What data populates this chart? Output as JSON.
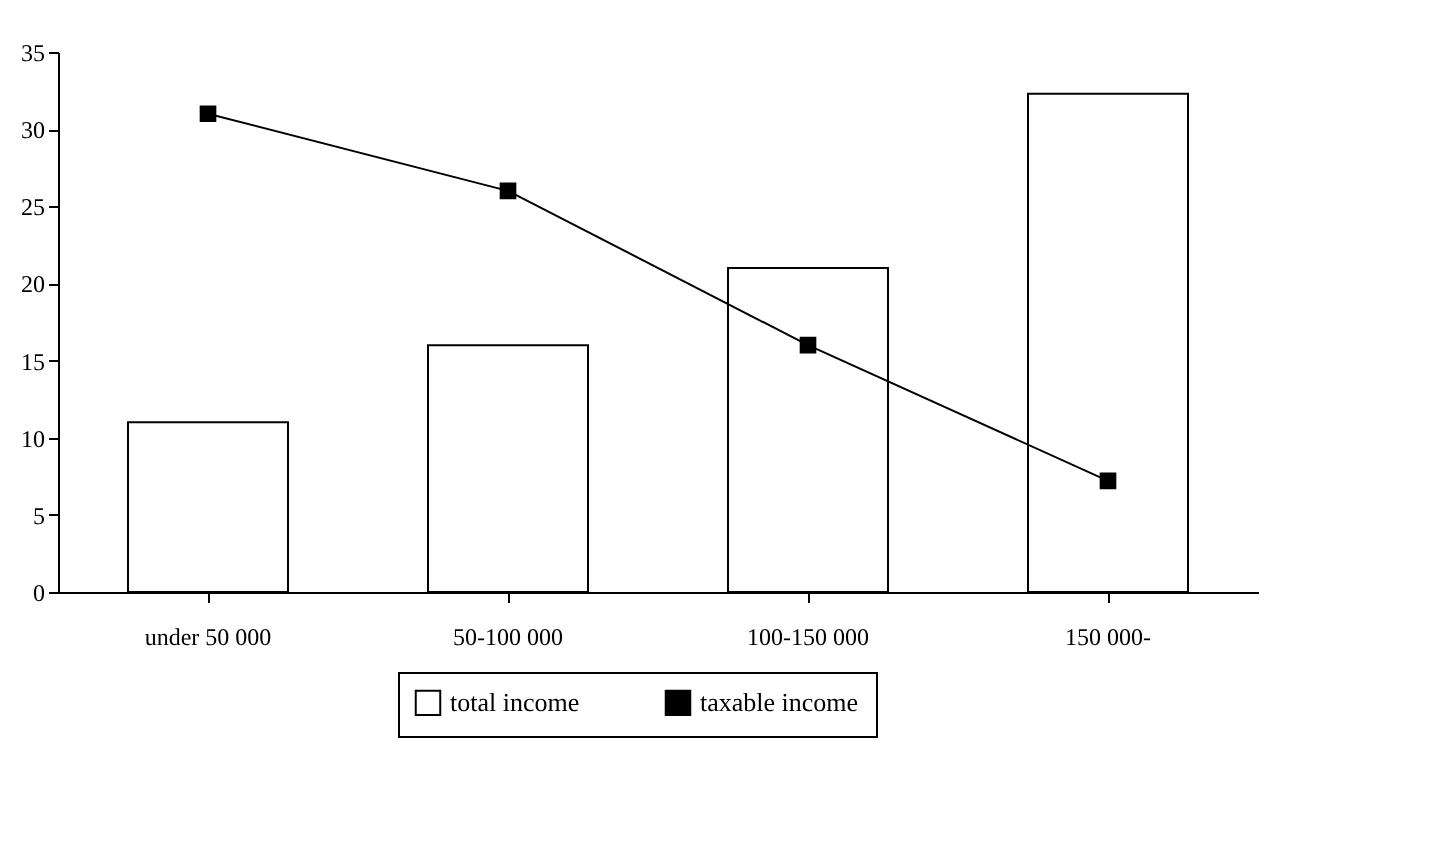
{
  "chart_data": {
    "type": "bar",
    "categories": [
      "under 50 000",
      "50-100 000",
      "100-150 000",
      "150 000-"
    ],
    "series": [
      {
        "name": "total income",
        "color": "#ffffff",
        "values": [
          11,
          16,
          21,
          32.3
        ]
      },
      {
        "name": "taxable income",
        "type": "line",
        "color": "#000000",
        "values": [
          31,
          26,
          16,
          7.2
        ]
      }
    ],
    "ylim": [
      0,
      35
    ],
    "yticks": [
      0,
      5,
      10,
      15,
      20,
      25,
      30,
      35
    ],
    "grid": false,
    "legend": "bottom",
    "marker": "square",
    "line_style": "solid"
  }
}
